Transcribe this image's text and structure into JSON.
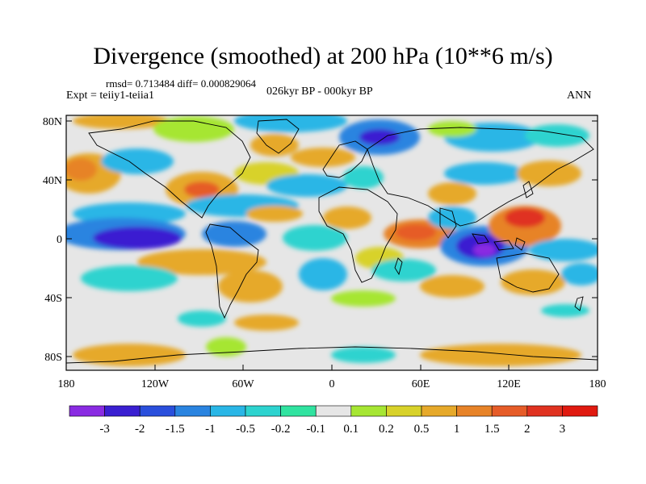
{
  "title": "Divergence (smoothed) at 200 hPa (10**6 m/s)",
  "stats": "rmsd= 0.713484 diff= 0.000829064",
  "experiment": "Expt = teiiy1-teiia1",
  "period": "026kyr BP - 000kyr BP",
  "season": "ANN",
  "map": {
    "lat_ticks": [
      "80N",
      "40N",
      "0",
      "40S",
      "80S"
    ],
    "lon_ticks": [
      "180",
      "120W",
      "60W",
      "0",
      "60E",
      "120E",
      "180"
    ]
  },
  "colorbar": {
    "labels": [
      "-3",
      "-2",
      "-1.5",
      "-1",
      "-0.5",
      "-0.2",
      "-0.1",
      "0.1",
      "0.2",
      "0.5",
      "1",
      "1.5",
      "2",
      "3"
    ],
    "colors": [
      "#8a2be2",
      "#3a1fd1",
      "#2a4fdc",
      "#2a84e0",
      "#29b6e6",
      "#2dd3cf",
      "#30e3a0",
      "#e6e6e6",
      "#a6e633",
      "#d8d22a",
      "#e6a92a",
      "#e78328",
      "#e65c28",
      "#e03220",
      "#e01a10"
    ]
  },
  "colors": {
    "continent_outline": "#000000",
    "ocean_background": "#e6e6e6"
  }
}
